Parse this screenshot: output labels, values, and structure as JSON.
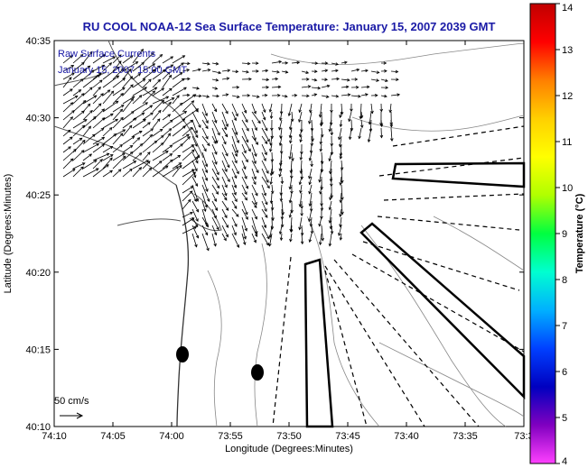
{
  "title": "RU COOL  NOAA-12  Sea Surface Temperature:  January 15, 2007 2039 GMT",
  "overlay_lines": [
    "Raw Surface Currents",
    "January 15, 2007 15:00 GMT"
  ],
  "scale_label": "50 cm/s",
  "x_axis": {
    "label": "Longitude (Degrees:Minutes)",
    "ticks": [
      "74:10",
      "74:05",
      "74:00",
      "73:55",
      "73:50",
      "73:45",
      "73:40",
      "73:35",
      "73:3"
    ]
  },
  "y_axis": {
    "label": "Latitude (Degrees:Minutes)",
    "ticks": [
      "40:35",
      "40:30",
      "40:25",
      "40:20",
      "40:15",
      "40:10"
    ]
  },
  "colorbar": {
    "label": "Temperature (°C)",
    "ticks": [
      "14",
      "13",
      "12",
      "11",
      "10",
      "9",
      "8",
      "7",
      "6",
      "5",
      "4"
    ],
    "colors": [
      "#c00000",
      "#ff0000",
      "#ff7f00",
      "#ffd000",
      "#ffff00",
      "#b0ff00",
      "#00ff40",
      "#00ffd0",
      "#00b0ff",
      "#0040ff",
      "#0000c0",
      "#8000c0",
      "#ff40ff"
    ]
  }
}
